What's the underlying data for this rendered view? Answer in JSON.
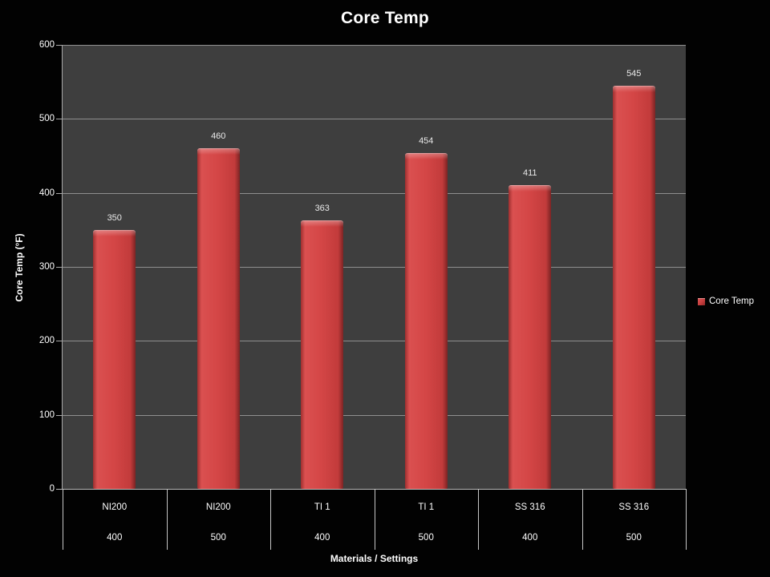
{
  "chart_data": {
    "type": "bar",
    "title": "Core Temp",
    "xlabel": "Materials / Settings",
    "ylabel": "Core Temp (°F)",
    "ylim": [
      0,
      600
    ],
    "yticks": [
      0,
      100,
      200,
      300,
      400,
      500,
      600
    ],
    "grid": true,
    "legend": {
      "position": "right",
      "entries": [
        "Core Temp"
      ]
    },
    "categories": [
      {
        "material": "NI200",
        "setting": "400"
      },
      {
        "material": "NI200",
        "setting": "500"
      },
      {
        "material": "TI 1",
        "setting": "400"
      },
      {
        "material": "TI 1",
        "setting": "500"
      },
      {
        "material": "SS 316",
        "setting": "400"
      },
      {
        "material": "SS 316",
        "setting": "500"
      }
    ],
    "series": [
      {
        "name": "Core Temp",
        "values": [
          350,
          460,
          363,
          454,
          411,
          545
        ]
      }
    ]
  },
  "colors": {
    "background": "#020202",
    "plot_background": "#3e3e3e",
    "gridline": "#9d9d9d",
    "axis_line": "#bdbdbd",
    "bar_fill": "#d44646",
    "bar_edge_dark": "#7c2424",
    "bar_highlight": "#e05858",
    "text": "#ffffff",
    "data_label": "#e9e9e9"
  }
}
